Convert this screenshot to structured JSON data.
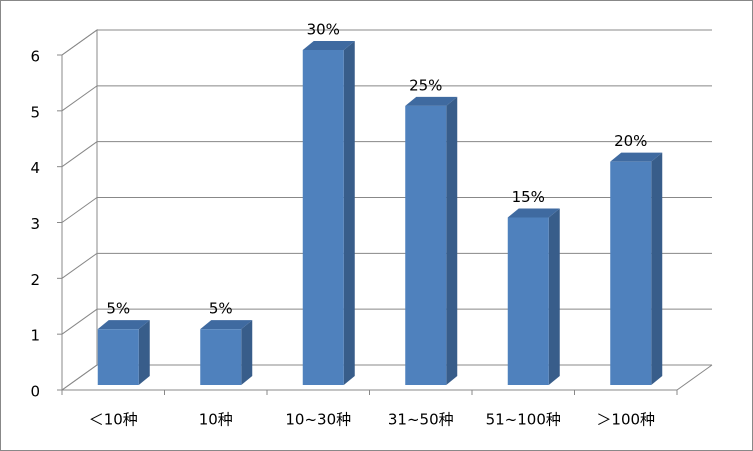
{
  "chart_data": {
    "type": "bar3d",
    "categories": [
      "＜10种",
      "10种",
      "10~30种",
      "31~50种",
      "51~100种",
      "＞100种"
    ],
    "values": [
      1,
      1,
      6,
      5,
      3,
      4
    ],
    "value_labels": [
      "5%",
      "5%",
      "30%",
      "25%",
      "15%",
      "20%"
    ],
    "color": "#4f81bd",
    "ylim": [
      0,
      6
    ],
    "yticks": [
      0,
      1,
      2,
      3,
      4,
      5,
      6
    ],
    "grid": true
  }
}
